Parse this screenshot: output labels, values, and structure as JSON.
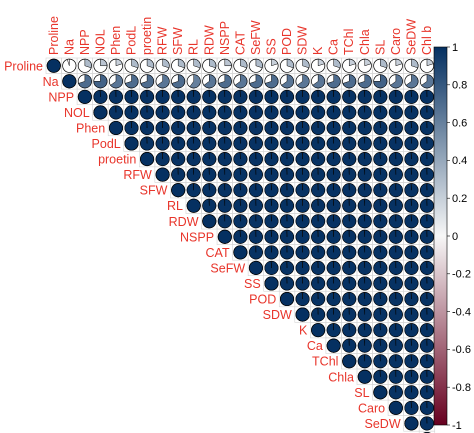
{
  "chart_data": {
    "type": "heatmap",
    "subtype": "correlation-matrix-upper-triangle",
    "glyph": "pie",
    "variables": [
      "Proline",
      "Na",
      "NPP",
      "NOL",
      "Phen",
      "PodL",
      "proetin",
      "RFW",
      "SFW",
      "RL",
      "RDW",
      "NSPP",
      "CAT",
      "SeFW",
      "SS",
      "POD",
      "SDW",
      "K",
      "Ca",
      "TChl",
      "Chla",
      "SL",
      "Caro",
      "SeDW",
      "Chl b"
    ],
    "proline_row": [
      1,
      -0.05,
      0.3,
      0.25,
      0.2,
      0.3,
      0.3,
      0.3,
      0.3,
      0.3,
      0.3,
      0.25,
      0.3,
      0.3,
      0.2,
      0.3,
      0.3,
      0.2,
      0.3,
      0.2,
      0.2,
      0.3,
      0.2,
      0.3,
      0.2
    ],
    "na_row": [
      -0.05,
      1,
      0.7,
      0.75,
      0.65,
      0.7,
      0.7,
      0.65,
      0.7,
      0.6,
      0.65,
      0.7,
      0.65,
      0.7,
      0.7,
      0.65,
      0.65,
      0.65,
      0.7,
      0.7,
      0.7,
      0.75,
      0.65,
      0.65,
      0.65
    ],
    "others_default": 0.99,
    "colorbar": {
      "range": [
        -1,
        1
      ],
      "ticks": [
        "1",
        "0.8",
        "0.6",
        "0.4",
        "0.2",
        "0",
        "-0.2",
        "-0.4",
        "-0.6",
        "-0.8",
        "-1"
      ],
      "high_color": "#053061",
      "mid_color": "#f7f7f7",
      "low_color": "#67001f"
    },
    "label_color": "#e8352b",
    "grid": true
  }
}
